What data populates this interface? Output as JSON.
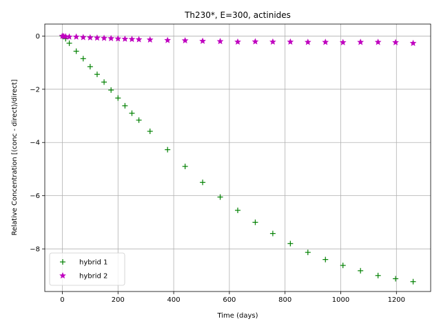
{
  "chart_data": {
    "type": "scatter",
    "title": "Th230*, E=300, actinides",
    "xlabel": "Time (days)",
    "ylabel": "Relative Concentration [(conc - direct)/direct]",
    "xlim": [
      -63,
      1323
    ],
    "ylim": [
      -9.6,
      0.45
    ],
    "xticks": [
      0,
      200,
      400,
      600,
      800,
      1000,
      1200
    ],
    "yticks": [
      0,
      -2,
      -4,
      -6,
      -8
    ],
    "grid": true,
    "legend_position": "lower-left",
    "series": [
      {
        "name": "hybrid 1",
        "marker": "plus",
        "color": "#008000",
        "x": [
          0,
          5,
          12,
          25,
          50,
          75,
          100,
          125,
          150,
          175,
          200,
          225,
          250,
          275,
          315,
          378,
          441,
          504,
          567,
          630,
          693,
          756,
          819,
          882,
          945,
          1008,
          1071,
          1134,
          1197,
          1260
        ],
        "y": [
          0,
          -0.02,
          -0.1,
          -0.27,
          -0.57,
          -0.85,
          -1.15,
          -1.44,
          -1.73,
          -2.03,
          -2.33,
          -2.62,
          -2.9,
          -3.16,
          -3.58,
          -4.27,
          -4.9,
          -5.5,
          -6.05,
          -6.55,
          -7.0,
          -7.42,
          -7.8,
          -8.13,
          -8.4,
          -8.62,
          -8.82,
          -9.0,
          -9.12,
          -9.23
        ]
      },
      {
        "name": "hybrid 2",
        "marker": "star",
        "color": "#bf00bf",
        "x": [
          0,
          5,
          12,
          25,
          50,
          75,
          100,
          125,
          150,
          175,
          200,
          225,
          250,
          275,
          315,
          378,
          441,
          504,
          567,
          630,
          693,
          756,
          819,
          882,
          945,
          1008,
          1071,
          1134,
          1197,
          1260
        ],
        "y": [
          0,
          -0.01,
          -0.02,
          -0.03,
          -0.03,
          -0.05,
          -0.06,
          -0.07,
          -0.08,
          -0.09,
          -0.1,
          -0.11,
          -0.12,
          -0.13,
          -0.14,
          -0.16,
          -0.17,
          -0.19,
          -0.2,
          -0.22,
          -0.21,
          -0.22,
          -0.22,
          -0.23,
          -0.23,
          -0.24,
          -0.23,
          -0.23,
          -0.24,
          -0.27
        ]
      }
    ]
  }
}
